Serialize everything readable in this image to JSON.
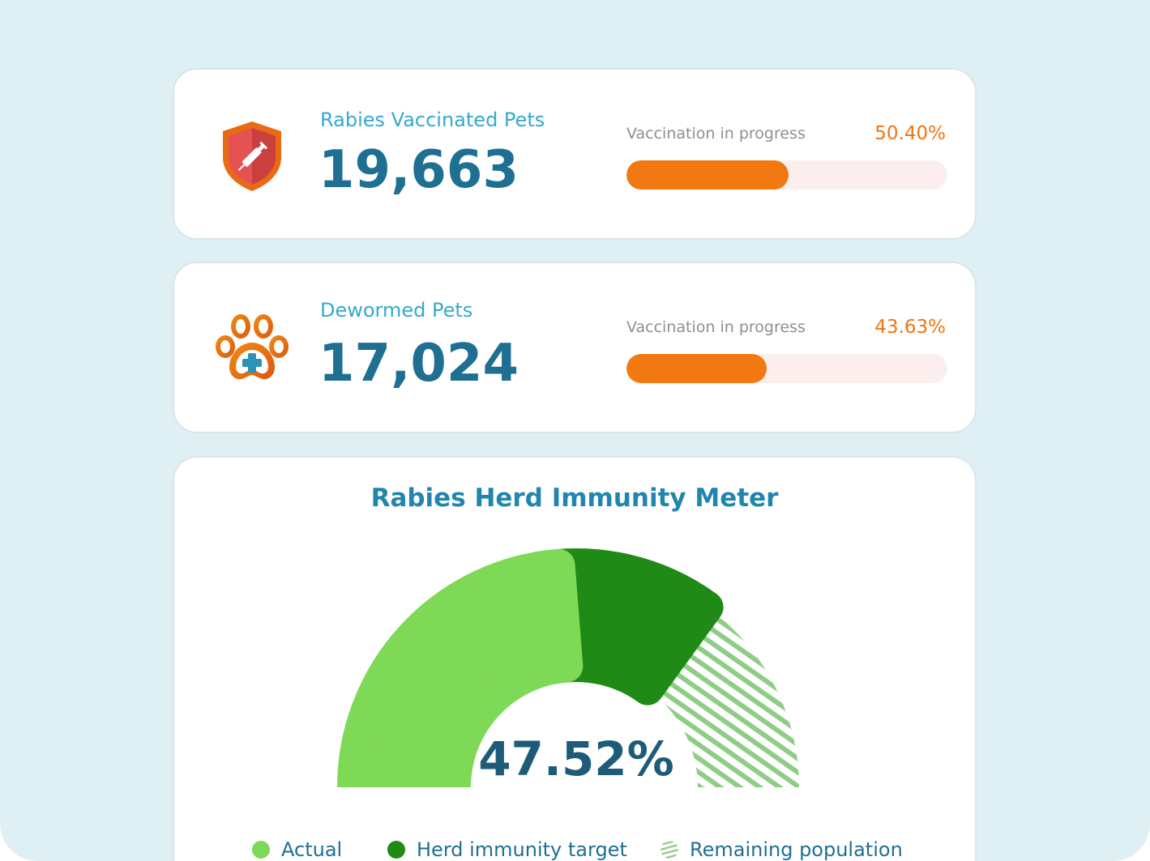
{
  "stats": [
    {
      "label": "Rabies Vaccinated Pets",
      "value": "19,663",
      "icon": "syringe-shield-icon",
      "progress_label": "Vaccination in progress",
      "progress_pct": "50.40%",
      "progress": 0.504
    },
    {
      "label": "Dewormed Pets",
      "value": "17,024",
      "icon": "paw-medical-icon",
      "progress_label": "Vaccination in progress",
      "progress_pct": "43.63%",
      "progress": 0.4363
    }
  ],
  "meter": {
    "title": "Rabies Herd Immunity Meter",
    "value": "47.52%",
    "actual": 0.4752,
    "target": 0.7,
    "legend": [
      "Actual",
      "Herd immunity target",
      "Remaining population"
    ]
  },
  "colors": {
    "accent": "#f27812",
    "actual": "#7ed957",
    "target": "#208a16",
    "remaining": "#8fcd86",
    "heading": "#1f6f93",
    "label": "#35a9cf",
    "background": "#dff0f4"
  }
}
